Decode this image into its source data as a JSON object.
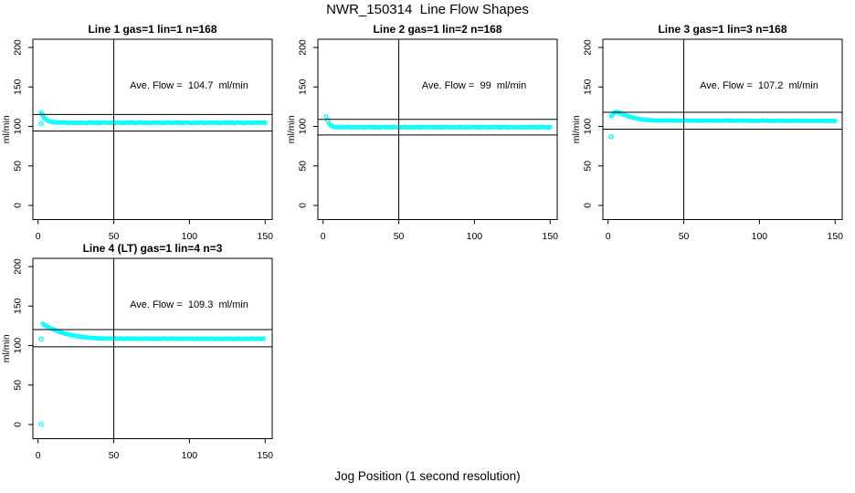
{
  "figure": {
    "title": "NWR_150314  Line Flow Shapes",
    "xlabel": "Jog Position (1 second resolution)",
    "ylabel": "ml/min",
    "background": "#ffffff",
    "point_color": "#00ffff",
    "axis_color": "#000000",
    "x_ticks": [
      0,
      50,
      100,
      150
    ],
    "y_ticks": [
      0,
      50,
      100,
      150,
      200
    ]
  },
  "chart_data": [
    {
      "type": "scatter",
      "title": "Line 1 gas=1 lin=1 n=168",
      "annotation": "Ave. Flow =  104.7  ml/min",
      "ave_flow": 104.7,
      "ref_lines": [
        115.2,
        94.2
      ],
      "vline_x": 50,
      "xlim": [
        -3,
        154
      ],
      "ylim": [
        -18,
        210
      ],
      "ylabel": "ml/min",
      "x_ticks": [
        0,
        50,
        100,
        150
      ],
      "y_ticks": [
        0,
        50,
        100,
        150,
        200
      ],
      "x_start": 2,
      "x_step": 2,
      "y": [
        117.7,
        111.1,
        107.8,
        106.2,
        105.4,
        105.1,
        104.9,
        104.8,
        104.8,
        104.4,
        105.0,
        104.3,
        104.9,
        104.5,
        104.8,
        104.1,
        105.1,
        104.6,
        104.9,
        104.3,
        104.7,
        105.0,
        104.4,
        104.8,
        104.2,
        105.0,
        104.6,
        104.3,
        104.9,
        104.5,
        105.1,
        104.2,
        104.7,
        104.9,
        104.4,
        104.8,
        104.3,
        105.0,
        104.6,
        104.9,
        104.2,
        104.7,
        105.1,
        104.4,
        104.8,
        104.5,
        104.9,
        104.3,
        105.0,
        104.6,
        104.2,
        104.8,
        104.5,
        105.1,
        104.3,
        104.7,
        104.9,
        104.4,
        105.0,
        104.2,
        104.6,
        104.9,
        104.5,
        104.8,
        104.3,
        105.1,
        104.6,
        104.2,
        104.9,
        104.7,
        104.4,
        105.0,
        104.5,
        104.8,
        104.6
      ],
      "outliers": [
        [
          2,
          103.5
        ]
      ]
    },
    {
      "type": "scatter",
      "title": "Line 2 gas=1 lin=2 n=168",
      "annotation": "Ave. Flow =  99  ml/min",
      "ave_flow": 99,
      "ref_lines": [
        108.9,
        89.1
      ],
      "vline_x": 50,
      "xlim": [
        -3,
        154
      ],
      "ylim": [
        -18,
        210
      ],
      "ylabel": "ml/min",
      "x_ticks": [
        0,
        50,
        100,
        150
      ],
      "y_ticks": [
        0,
        50,
        100,
        150,
        200
      ],
      "x_start": 2,
      "x_step": 2,
      "y": [
        112.5,
        102.9,
        100.1,
        99.3,
        99.1,
        99.2,
        98.8,
        99.3,
        98.9,
        99.1,
        98.7,
        99.2,
        99.0,
        98.8,
        99.3,
        98.9,
        99.1,
        98.7,
        99.0,
        99.2,
        98.8,
        99.1,
        98.9,
        99.3,
        98.7,
        99.0,
        99.2,
        98.8,
        99.1,
        98.6,
        99.2,
        98.9,
        99.0,
        99.3,
        98.8,
        99.1,
        98.7,
        99.2,
        99.0,
        98.9,
        99.3,
        98.7,
        99.1,
        98.8,
        99.2,
        99.0,
        98.6,
        99.1,
        98.9,
        99.3,
        98.8,
        99.0,
        99.2,
        98.7,
        99.1,
        98.9,
        99.2,
        98.8,
        99.0,
        99.3,
        98.7,
        99.1,
        98.8,
        99.2,
        98.9,
        99.0,
        98.6,
        99.2,
        98.9,
        99.1,
        98.8,
        99.3,
        99.0,
        98.7,
        99.1
      ],
      "outliers": [
        [
          3,
          107.5
        ]
      ]
    },
    {
      "type": "scatter",
      "title": "Line 3 gas=1 lin=3 n=168",
      "annotation": "Ave. Flow =  107.2  ml/min",
      "ave_flow": 107.2,
      "ref_lines": [
        117.9,
        96.5
      ],
      "vline_x": 50,
      "xlim": [
        -3,
        154
      ],
      "ylim": [
        -18,
        210
      ],
      "ylabel": "ml/min",
      "x_ticks": [
        0,
        50,
        100,
        150
      ],
      "y_ticks": [
        0,
        50,
        100,
        150,
        200
      ],
      "x_start": 2,
      "x_step": 2,
      "y": [
        112.5,
        117.5,
        118.3,
        116.6,
        115.0,
        113.6,
        112.4,
        111.3,
        110.4,
        109.7,
        109.0,
        108.5,
        108.1,
        107.8,
        107.7,
        107.6,
        107.5,
        107.2,
        107.6,
        107.3,
        107.7,
        107.2,
        107.5,
        107.1,
        107.4,
        107.6,
        107.2,
        107.5,
        107.0,
        107.4,
        107.2,
        107.6,
        107.1,
        107.4,
        107.2,
        107.5,
        107.0,
        107.3,
        107.6,
        107.1,
        107.4,
        107.0,
        107.3,
        107.5,
        107.1,
        107.4,
        107.2,
        106.9,
        107.3,
        107.1,
        107.5,
        107.0,
        107.3,
        106.9,
        107.2,
        107.4,
        107.0,
        107.3,
        106.9,
        107.2,
        107.0,
        107.4,
        106.9,
        107.2,
        107.0,
        107.3,
        106.8,
        107.1,
        107.3,
        106.9,
        107.2,
        106.8,
        107.1,
        106.9,
        107.0
      ],
      "outliers": [
        [
          2,
          87
        ]
      ]
    },
    {
      "type": "scatter",
      "title": "Line 4 (LT) gas=1 lin=4 n=3",
      "annotation": "Ave. Flow =  109.3  ml/min",
      "ave_flow": 109.3,
      "ref_lines": [
        120.2,
        98.4
      ],
      "vline_x": 50,
      "xlim": [
        -3,
        154
      ],
      "ylim": [
        -18,
        210
      ],
      "ylabel": "ml/min",
      "x_ticks": [
        0,
        50,
        100,
        150
      ],
      "y_ticks": [
        0,
        50,
        100,
        150,
        200
      ],
      "x_start": 3,
      "x_step": 2,
      "y": [
        127.5,
        125.2,
        123.1,
        121.3,
        119.6,
        118.1,
        116.8,
        115.6,
        114.5,
        113.6,
        112.8,
        112.1,
        111.4,
        110.9,
        110.4,
        110.0,
        109.7,
        109.4,
        109.2,
        109.0,
        108.9,
        108.8,
        108.9,
        108.5,
        109.1,
        108.6,
        109.0,
        108.4,
        108.9,
        108.6,
        109.1,
        108.5,
        108.8,
        108.4,
        109.0,
        108.6,
        108.9,
        108.3,
        108.8,
        108.5,
        109.0,
        108.4,
        108.7,
        108.9,
        108.4,
        108.8,
        108.3,
        108.9,
        108.5,
        108.8,
        108.2,
        108.7,
        108.4,
        108.9,
        108.3,
        108.6,
        108.8,
        108.3,
        108.7,
        108.2,
        108.6,
        108.4,
        108.8,
        108.2,
        108.5,
        108.7,
        108.2,
        108.6,
        108.3,
        108.7,
        108.4,
        108.6,
        108.2,
        108.5
      ],
      "outliers": [
        [
          2,
          108.2
        ],
        [
          2,
          0.5
        ]
      ]
    }
  ]
}
